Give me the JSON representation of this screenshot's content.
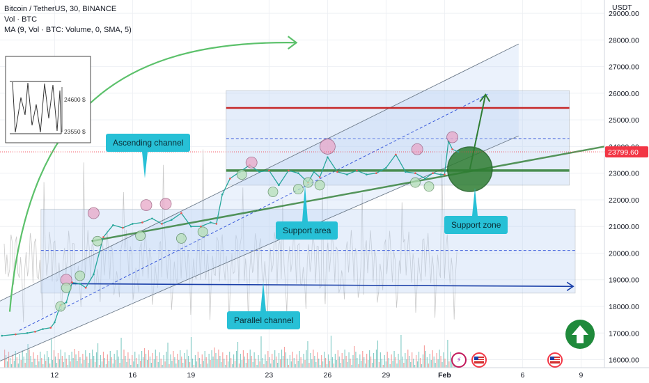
{
  "legend": {
    "title": "Bitcoin / TetherUS, 30, BINANCE",
    "vol": "Vol · BTC",
    "ma": "MA (9, Vol · BTC: Volume, 0, SMA, 5)"
  },
  "currency": "USDT",
  "last_price": "23799.60",
  "inset_labels": [
    "24600 $",
    "23550 $"
  ],
  "annotations": {
    "ascending_channel": "Ascending channel",
    "support_area": "Support area",
    "support_zone": "Support zone",
    "parallel_channel": "Parallel channel"
  },
  "colors": {
    "accent_callout": "#27c0d6",
    "trend_green": "#2e7d32",
    "resistance_red": "#c62828",
    "parallel_blue": "#1a3fa8",
    "channel_fill": "#bcd4f5",
    "price_tag": "#f23645"
  },
  "icons": [
    "up-arrow-icon",
    "lightning-icon",
    "us-flag-icon"
  ],
  "chart_data": {
    "type": "line",
    "title": "Bitcoin / TetherUS, 30, BINANCE",
    "ylim": [
      15700,
      29500
    ],
    "y_ticks": [
      16000,
      17000,
      18000,
      19000,
      20000,
      21000,
      22000,
      23000,
      24000,
      25000,
      26000,
      27000,
      28000,
      29000
    ],
    "y_tick_labels": [
      "16000.00",
      "17000.00",
      "18000.00",
      "19000.00",
      "20000.00",
      "21000.00",
      "22000.00",
      "23000.00",
      "24000.00",
      "25000.00",
      "26000.00",
      "27000.00",
      "28000.00",
      "29000.00"
    ],
    "x_tick_labels": [
      "12",
      "16",
      "19",
      "23",
      "26",
      "29",
      "Feb",
      "6",
      "9"
    ],
    "x_tick_days": [
      12,
      16,
      19,
      23,
      26,
      29,
      32,
      36,
      39
    ],
    "xlim": [
      9.2,
      40.2
    ],
    "series": [
      {
        "values_x": [
          9.3,
          10.0,
          10.6,
          11.0,
          11.4,
          11.8,
          12.0,
          12.3,
          12.6,
          12.9,
          13.3,
          13.6,
          14.0,
          14.5,
          15.0,
          15.5,
          16.0,
          16.5,
          17.0,
          17.5,
          18.0,
          18.5,
          19.0,
          19.5,
          20.0,
          20.3,
          20.6,
          21.0,
          21.5,
          22.0,
          22.5,
          23.0,
          23.5,
          24.0,
          24.5,
          25.0,
          25.3,
          25.6,
          26.0,
          26.5,
          27.0,
          27.5,
          28.0,
          28.5,
          29.0,
          29.5,
          30.0,
          30.5,
          31.0,
          31.4,
          31.8,
          32.0,
          32.2,
          32.4,
          32.7
        ],
        "values_y": [
          16900,
          16950,
          17000,
          17050,
          17150,
          17200,
          17400,
          18050,
          18150,
          18900,
          18850,
          18700,
          19200,
          20600,
          21050,
          20950,
          21100,
          21150,
          21300,
          21100,
          21250,
          21500,
          21000,
          21000,
          21150,
          21100,
          22200,
          22800,
          23050,
          23300,
          23050,
          23100,
          22550,
          23100,
          23000,
          22650,
          23050,
          22850,
          23600,
          23050,
          22950,
          23100,
          22950,
          23000,
          23200,
          23700,
          23050,
          23000,
          22800,
          23000,
          22950,
          22950,
          24200,
          23900,
          23800
        ]
      }
    ],
    "drawings": {
      "resistance_red": 25450,
      "support_green": 23100,
      "parallel_top": 21650,
      "parallel_bottom": 18500,
      "parallel_mid": 20100,
      "upper_range_top": 26100,
      "upper_range_bottom": 22550
    }
  }
}
